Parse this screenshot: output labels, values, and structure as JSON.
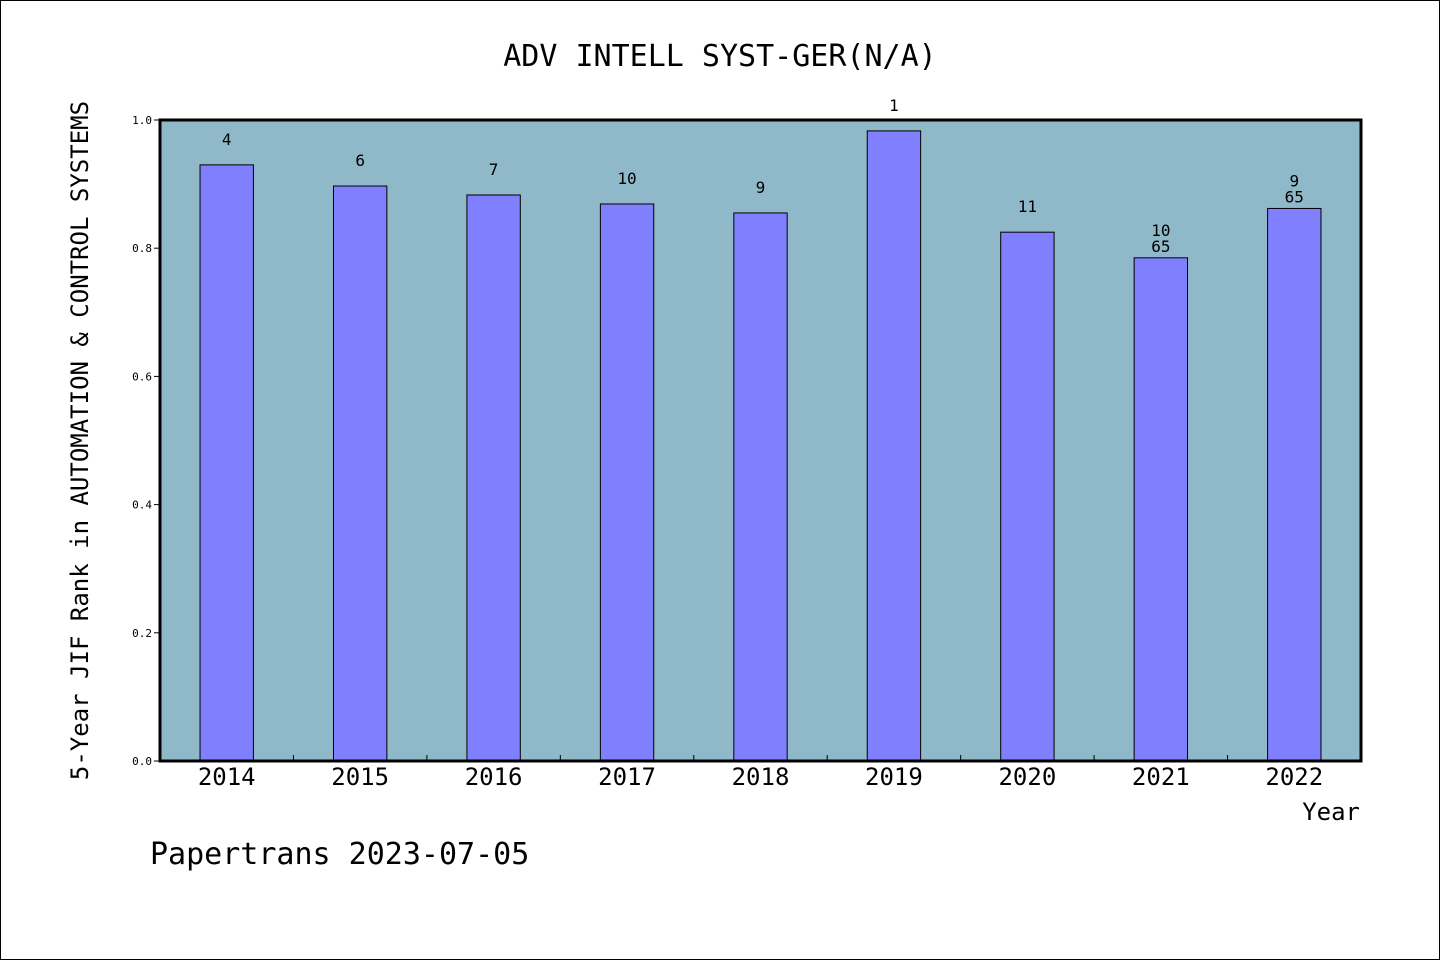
{
  "chart_data": {
    "type": "bar",
    "title": "ADV INTELL SYST-GER(N/A)",
    "ylabel": "5-Year JIF Rank in AUTOMATION & CONTROL SYSTEMS",
    "xlabel": "Year",
    "ylim": [
      0,
      1.0
    ],
    "yticks": [
      "0.0",
      "0.2",
      "0.4",
      "0.6",
      "0.8",
      "1.0"
    ],
    "categories": [
      "2014",
      "2015",
      "2016",
      "2017",
      "2018",
      "2019",
      "2020",
      "2021",
      "2022"
    ],
    "values": [
      0.93,
      0.897,
      0.883,
      0.869,
      0.855,
      0.983,
      0.825,
      0.785,
      0.862
    ],
    "rank_labels": [
      "4",
      "6",
      "7",
      "10",
      "9",
      "1",
      "11",
      "10",
      "9"
    ],
    "total_labels": [
      "",
      "",
      "",
      "",
      "",
      "",
      "",
      "65",
      "65"
    ],
    "grid": false,
    "legend": "none",
    "colors": {
      "plot_bg": "#8fb8c8",
      "bar": "#8080ff",
      "bar_edge": "#000000"
    }
  },
  "footer": "Papertrans 2023-07-05"
}
